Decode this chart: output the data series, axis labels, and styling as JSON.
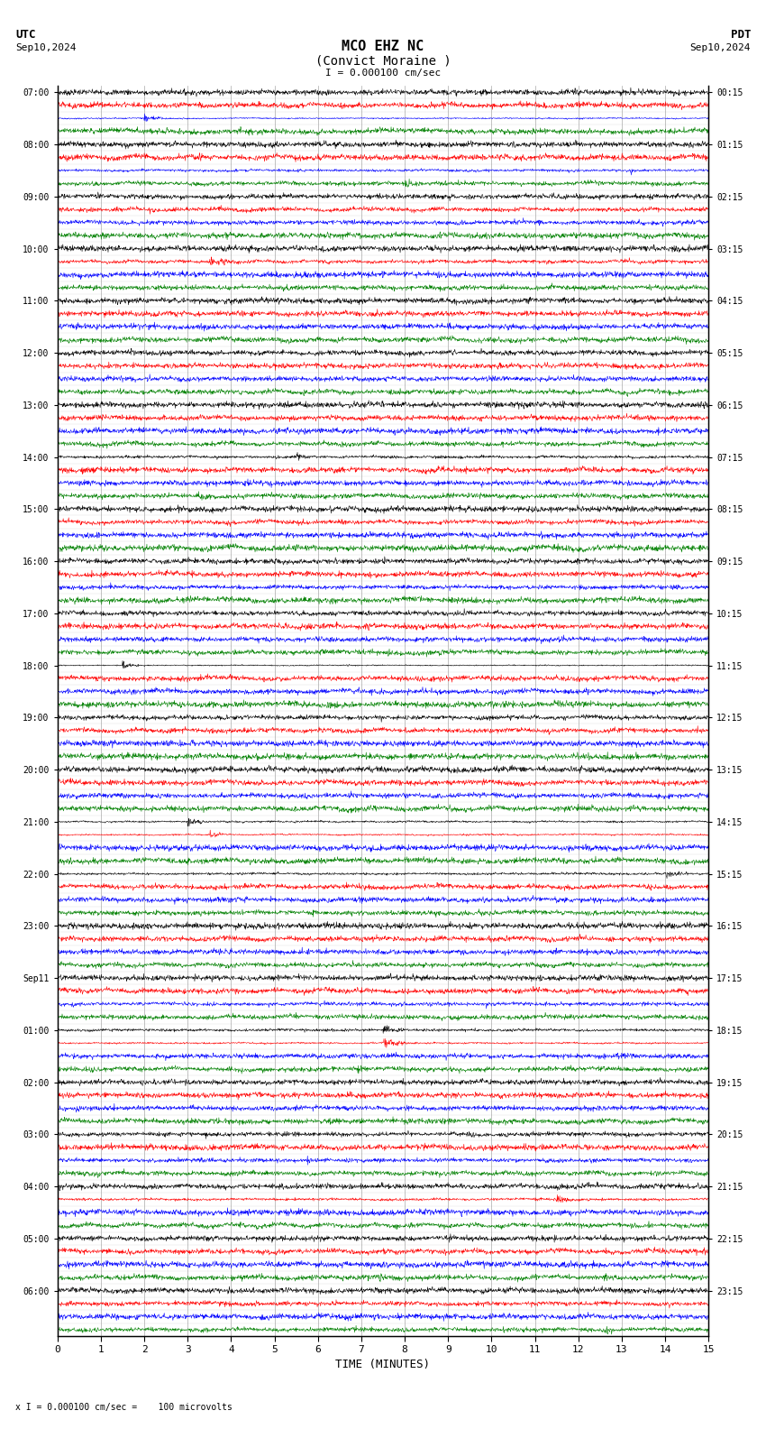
{
  "title_line1": "MCO EHZ NC",
  "title_line2": "(Convict Moraine )",
  "scale_text": "I = 0.000100 cm/sec",
  "utc_label": "UTC",
  "pdt_label": "PDT",
  "date_left": "Sep10,2024",
  "date_right": "Sep10,2024",
  "xlabel": "TIME (MINUTES)",
  "bottom_label": "x I = 0.000100 cm/sec =    100 microvolts",
  "bg_color": "#ffffff",
  "trace_colors": [
    "black",
    "red",
    "blue",
    "green"
  ],
  "grid_color": "#aaaaaa",
  "n_rows": 96,
  "figsize": [
    8.5,
    15.84
  ],
  "dpi": 100,
  "row_labels_left": [
    "07:00",
    "",
    "",
    "",
    "08:00",
    "",
    "",
    "",
    "09:00",
    "",
    "",
    "",
    "10:00",
    "",
    "",
    "",
    "11:00",
    "",
    "",
    "",
    "12:00",
    "",
    "",
    "",
    "13:00",
    "",
    "",
    "",
    "14:00",
    "",
    "",
    "",
    "15:00",
    "",
    "",
    "",
    "16:00",
    "",
    "",
    "",
    "17:00",
    "",
    "",
    "",
    "18:00",
    "",
    "",
    "",
    "19:00",
    "",
    "",
    "",
    "20:00",
    "",
    "",
    "",
    "21:00",
    "",
    "",
    "",
    "22:00",
    "",
    "",
    "",
    "23:00",
    "",
    "",
    "",
    "Sep11",
    "",
    "",
    "",
    "01:00",
    "",
    "",
    "",
    "02:00",
    "",
    "",
    "",
    "03:00",
    "",
    "",
    "",
    "04:00",
    "",
    "",
    "",
    "05:00",
    "",
    "",
    "",
    "06:00",
    "",
    "",
    ""
  ],
  "row_labels_right": [
    "00:15",
    "",
    "",
    "",
    "01:15",
    "",
    "",
    "",
    "02:15",
    "",
    "",
    "",
    "03:15",
    "",
    "",
    "",
    "04:15",
    "",
    "",
    "",
    "05:15",
    "",
    "",
    "",
    "06:15",
    "",
    "",
    "",
    "07:15",
    "",
    "",
    "",
    "08:15",
    "",
    "",
    "",
    "09:15",
    "",
    "",
    "",
    "10:15",
    "",
    "",
    "",
    "11:15",
    "",
    "",
    "",
    "12:15",
    "",
    "",
    "",
    "13:15",
    "",
    "",
    "",
    "14:15",
    "",
    "",
    "",
    "15:15",
    "",
    "",
    "",
    "16:15",
    "",
    "",
    "",
    "17:15",
    "",
    "",
    "",
    "18:15",
    "",
    "",
    "",
    "19:15",
    "",
    "",
    "",
    "20:15",
    "",
    "",
    "",
    "21:15",
    "",
    "",
    "",
    "22:15",
    "",
    "",
    "",
    "23:15",
    "",
    "",
    ""
  ]
}
